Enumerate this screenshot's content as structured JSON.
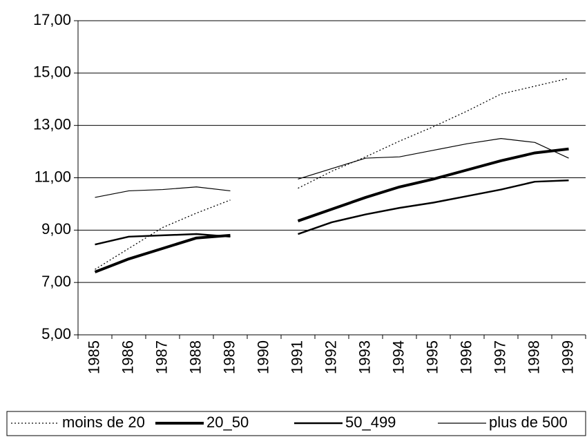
{
  "chart_data": {
    "type": "line",
    "categories": [
      "1985",
      "1986",
      "1987",
      "1988",
      "1989",
      "1990",
      "1991",
      "1992",
      "1993",
      "1994",
      "1995",
      "1996",
      "1997",
      "1998",
      "1999"
    ],
    "series": [
      {
        "name": "moins de 20",
        "color": "#000000",
        "width": 1.3,
        "dash": "2,3",
        "values": [
          7.5,
          8.3,
          9.1,
          9.65,
          10.15,
          null,
          10.6,
          11.25,
          11.8,
          12.4,
          12.95,
          13.55,
          14.2,
          14.5,
          14.8
        ]
      },
      {
        "name": "20_50",
        "color": "#000000",
        "width": 4,
        "dash": "none",
        "values": [
          7.4,
          7.9,
          8.3,
          8.7,
          8.8,
          null,
          9.35,
          9.8,
          10.25,
          10.65,
          10.95,
          11.3,
          11.65,
          11.95,
          12.1
        ]
      },
      {
        "name": "50_499",
        "color": "#000000",
        "width": 2.5,
        "dash": "none",
        "values": [
          8.45,
          8.75,
          8.8,
          8.85,
          8.75,
          null,
          8.85,
          9.3,
          9.6,
          9.85,
          10.05,
          10.3,
          10.55,
          10.85,
          10.9
        ]
      },
      {
        "name": "plus de 500",
        "color": "#000000",
        "width": 1.2,
        "dash": "none",
        "values": [
          10.25,
          10.5,
          10.55,
          10.65,
          10.5,
          null,
          10.95,
          11.35,
          11.75,
          11.8,
          12.05,
          12.3,
          12.5,
          12.35,
          11.75
        ]
      }
    ],
    "ylim": [
      5,
      17
    ],
    "yticks": [
      {
        "value": 5,
        "label": "5,00"
      },
      {
        "value": 7,
        "label": "7,00"
      },
      {
        "value": 9,
        "label": "9,00"
      },
      {
        "value": 11,
        "label": "11,00"
      },
      {
        "value": 13,
        "label": "13,00"
      },
      {
        "value": 15,
        "label": "15,00"
      },
      {
        "value": 17,
        "label": "17,00"
      }
    ],
    "grid": true,
    "legend": "bottom"
  }
}
